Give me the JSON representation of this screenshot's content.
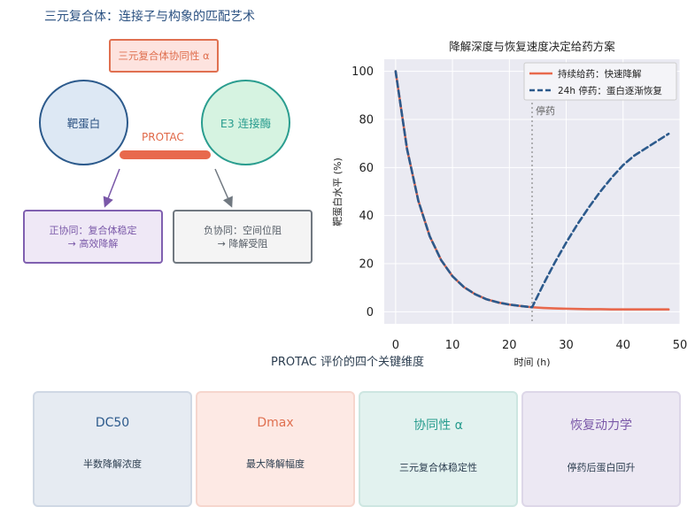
{
  "diagram": {
    "title": "三元复合体：连接子与构象的匹配艺术",
    "cooperativity_box": "三元复合体协同性 α",
    "target_protein": "靶蛋白",
    "e3_ligase": "E3 连接酶",
    "linker_label": "PROTAC",
    "positive": {
      "line1": "正协同：复合体稳定",
      "line2": "→ 高效降解"
    },
    "negative": {
      "line1": "负协同：空间位阻",
      "line2": "→ 降解受阻"
    }
  },
  "chart_data": {
    "type": "line",
    "title": "降解深度与恢复速度决定给药方案",
    "xlabel": "时间 (h)",
    "ylabel": "靶蛋白水平 (%)",
    "xlim": [
      -2,
      50
    ],
    "ylim": [
      -5,
      105
    ],
    "xticks": [
      0,
      10,
      20,
      30,
      40,
      50
    ],
    "yticks": [
      0,
      20,
      40,
      60,
      80,
      100
    ],
    "grid": true,
    "legend_position": "top-right",
    "annotation": {
      "x": 24,
      "label": "停药"
    },
    "series": [
      {
        "name": "持续给药：快速降解",
        "color": "#e8694d",
        "style": "solid",
        "x": [
          0,
          2,
          4,
          6,
          8,
          10,
          12,
          14,
          16,
          18,
          20,
          22,
          24,
          26,
          28,
          30,
          32,
          34,
          36,
          38,
          40,
          42,
          44,
          46,
          48
        ],
        "y": [
          100,
          67.8,
          46.1,
          31.4,
          21.5,
          14.8,
          10.3,
          7.3,
          5.2,
          3.9,
          3.0,
          2.4,
          1.9,
          1.6,
          1.4,
          1.3,
          1.2,
          1.1,
          1.1,
          1.0,
          1.0,
          1.0,
          1.0,
          1.0,
          1.0
        ]
      },
      {
        "name": "24h 停药：蛋白逐渐恢复",
        "color": "#2c5a8c",
        "style": "dashed",
        "x": [
          0,
          2,
          4,
          6,
          8,
          10,
          12,
          14,
          16,
          18,
          20,
          22,
          24,
          26,
          28,
          30,
          32,
          34,
          36,
          38,
          40,
          42,
          44,
          46,
          48
        ],
        "y": [
          100,
          67.8,
          46.1,
          31.4,
          21.5,
          14.8,
          10.3,
          7.3,
          5.2,
          3.9,
          3.0,
          2.4,
          1.9,
          11.5,
          20.5,
          28.8,
          36.5,
          43.5,
          50.0,
          55.8,
          61.0,
          65.0,
          68.0,
          71.0,
          74.0
        ]
      }
    ]
  },
  "dimensions": {
    "title": "PROTAC 评价的四个关键维度",
    "cards": [
      {
        "title": "DC50",
        "subtitle": "半数降解浓度"
      },
      {
        "title": "Dmax",
        "subtitle": "最大降解幅度"
      },
      {
        "title": "协同性 α",
        "subtitle": "三元复合体稳定性"
      },
      {
        "title": "恢复动力学",
        "subtitle": "停药后蛋白回升"
      }
    ]
  }
}
